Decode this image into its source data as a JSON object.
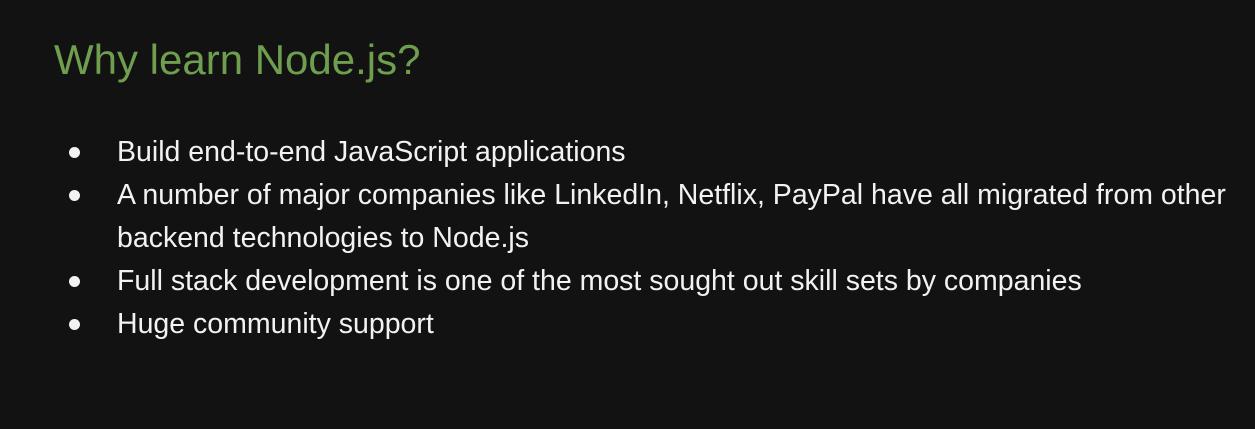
{
  "slide": {
    "title": "Why learn Node.js?",
    "accent_color": "#6f9f4e",
    "background_color": "#121212",
    "bullets": [
      "Build end-to-end JavaScript applications",
      "A number of major companies like LinkedIn, Netflix, PayPal have all migrated from other backend technologies to Node.js",
      "Full stack development is one of the most sought out skill sets by companies",
      "Huge community support"
    ]
  }
}
